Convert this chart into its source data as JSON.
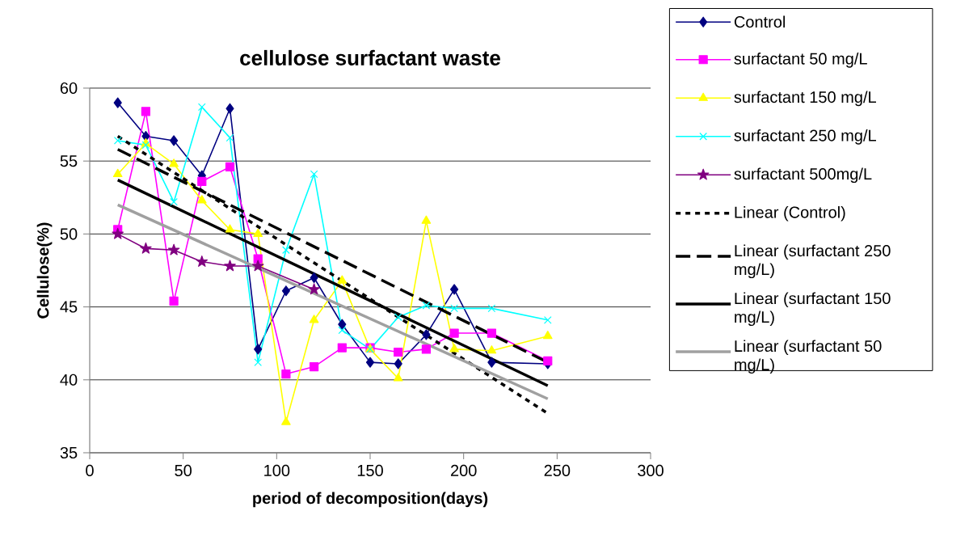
{
  "chart_data": {
    "type": "line",
    "title": "cellulose surfactant waste",
    "xlabel": "period of decomposition(days)",
    "ylabel": "Cellulose(%)",
    "x": [
      15,
      30,
      45,
      60,
      75,
      90,
      105,
      120,
      135,
      150,
      165,
      180,
      195,
      215,
      245
    ],
    "xlim": [
      0,
      300
    ],
    "ylim": [
      35,
      60
    ],
    "xticks": [
      0,
      50,
      100,
      150,
      200,
      250,
      300
    ],
    "yticks": [
      35,
      40,
      45,
      50,
      55,
      60
    ],
    "grid": "y",
    "legend": "right",
    "series": [
      {
        "name": "Control",
        "color": "#000080",
        "marker": "diamond",
        "values": [
          59.0,
          56.7,
          56.4,
          54.0,
          58.6,
          42.1,
          46.1,
          47.0,
          43.8,
          41.2,
          41.1,
          43.1,
          46.2,
          41.2,
          41.1
        ]
      },
      {
        "name": "surfactant 50 mg/L",
        "color": "#ff00ff",
        "marker": "square",
        "values": [
          50.3,
          58.4,
          45.4,
          53.6,
          54.6,
          48.3,
          40.4,
          40.9,
          42.2,
          42.2,
          41.9,
          42.1,
          43.2,
          43.2,
          41.3
        ]
      },
      {
        "name": "surfactant 150 mg/L",
        "color": "#ffff00",
        "marker": "triangle",
        "values": [
          54.1,
          56.2,
          54.8,
          52.3,
          50.3,
          50.0,
          37.1,
          44.1,
          46.8,
          42.1,
          40.1,
          50.9,
          42.1,
          42.0,
          43.0
        ]
      },
      {
        "name": "surfactant 250 mg/L",
        "color": "#00ffff",
        "marker": "cross",
        "values": [
          56.4,
          56.1,
          52.2,
          58.7,
          56.6,
          41.2,
          48.9,
          54.1,
          43.4,
          42.1,
          44.3,
          45.1,
          44.9,
          44.9,
          44.1
        ]
      },
      {
        "name": "surfactant 500mg/L",
        "color": "#800080",
        "marker": "star",
        "x": [
          15,
          30,
          45,
          60,
          75,
          90,
          120
        ],
        "values": [
          50.0,
          49.0,
          48.9,
          48.1,
          47.8,
          47.8,
          46.2
        ]
      },
      {
        "name": "Linear (Control)",
        "color": "#000000",
        "marker": "none",
        "line_style": "dotted",
        "x": [
          15,
          245
        ],
        "values": [
          56.7,
          37.7
        ]
      },
      {
        "name": "Linear (surfactant 250 mg/L)",
        "color": "#000000",
        "marker": "none",
        "line_style": "dashed",
        "x": [
          15,
          245
        ],
        "values": [
          55.8,
          41.2
        ]
      },
      {
        "name": "Linear (surfactant 150 mg/L)",
        "color": "#000000",
        "marker": "none",
        "line_style": "solid",
        "x": [
          15,
          245
        ],
        "values": [
          53.7,
          39.6
        ]
      },
      {
        "name": "Linear (surfactant 50 mg/L)",
        "color": "#a0a0a0",
        "marker": "none",
        "line_style": "solid",
        "x": [
          15,
          245
        ],
        "values": [
          52.0,
          38.7
        ]
      }
    ]
  }
}
